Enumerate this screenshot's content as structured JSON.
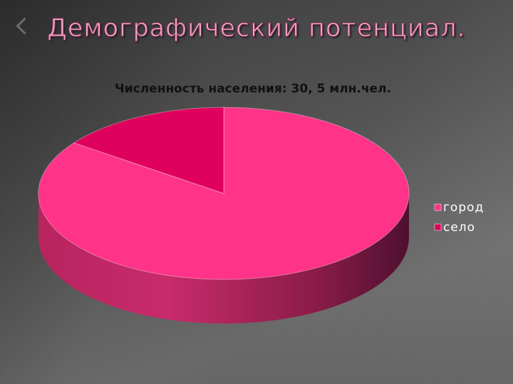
{
  "slide": {
    "title": "Демографический потенциал."
  },
  "chart_data": {
    "type": "pie",
    "title": "Численность населения: 30, 5 млн.чел.",
    "categories": [
      "город",
      "село"
    ],
    "values": [
      85,
      15
    ],
    "unit": "%",
    "colors": [
      "#ff3388",
      "#e0005e"
    ],
    "legend_position": "right",
    "style": "3d"
  }
}
